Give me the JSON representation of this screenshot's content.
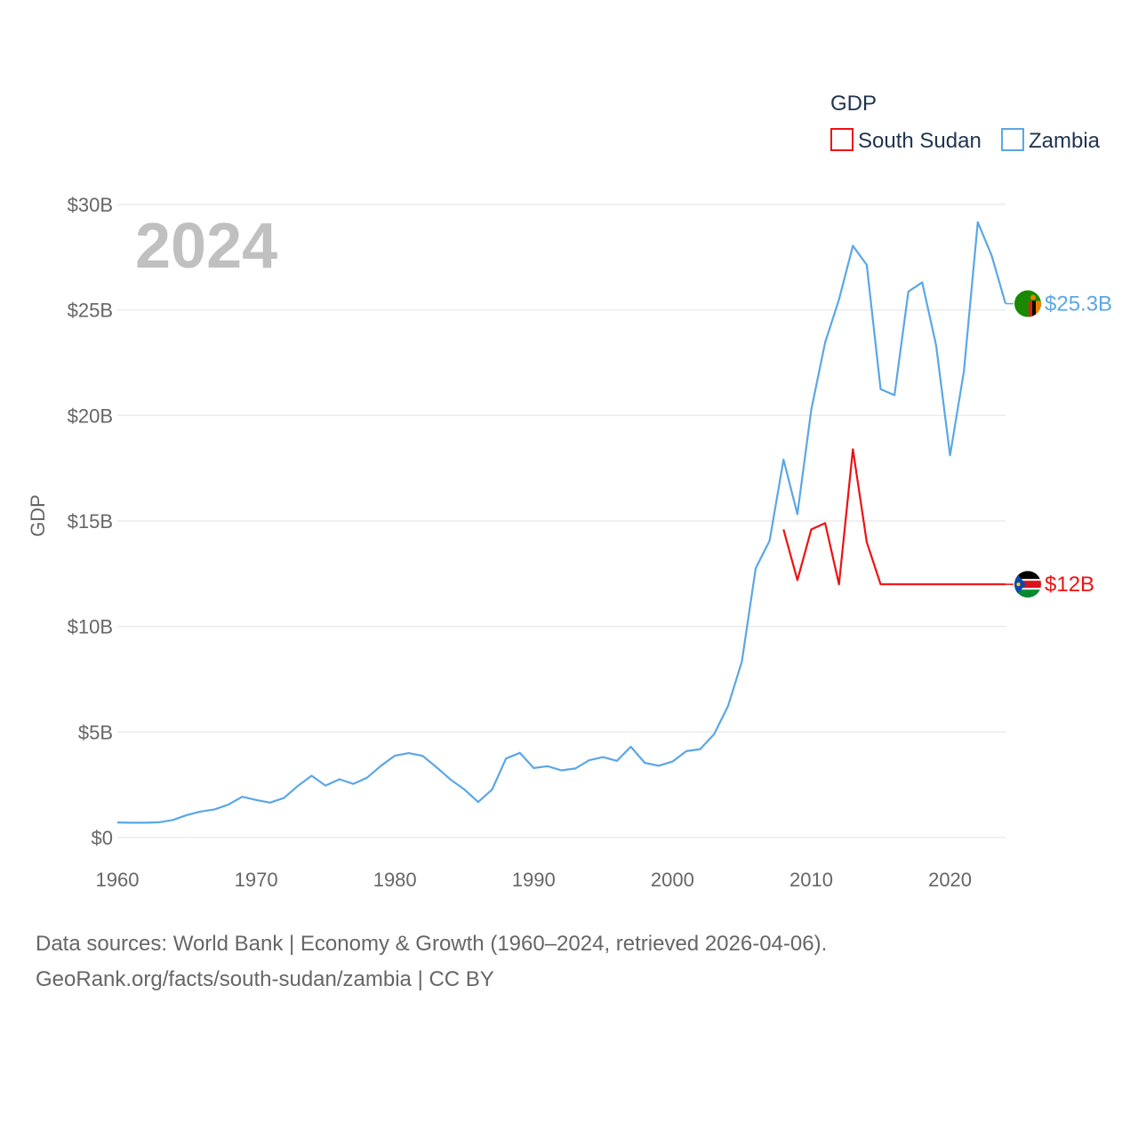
{
  "chart_data": {
    "type": "line",
    "title": "GDP",
    "ylabel": "GDP",
    "xlabel": "",
    "current_year": "2024",
    "xlim": [
      1960,
      2024
    ],
    "ylim": [
      0,
      30
    ],
    "x_ticks": [
      1960,
      1970,
      1980,
      1990,
      2000,
      2010,
      2020
    ],
    "x_tick_labels": [
      "1960",
      "1970",
      "1980",
      "1990",
      "2000",
      "2010",
      "2020"
    ],
    "y_ticks": [
      0,
      5,
      10,
      15,
      20,
      25,
      30
    ],
    "y_tick_labels": [
      "$0",
      "$5B",
      "$10B",
      "$15B",
      "$20B",
      "$25B",
      "$30B"
    ],
    "unit": "billion USD",
    "grid": true,
    "legend_position": "top-right",
    "series": [
      {
        "name": "South Sudan",
        "color": "#ee1111",
        "end_label": "$12B",
        "flag_icon": "south-sudan-flag-icon",
        "x": [
          2008,
          2009,
          2010,
          2011,
          2012,
          2013,
          2014,
          2015,
          2016,
          2017,
          2018,
          2019,
          2020,
          2021,
          2022,
          2023,
          2024
        ],
        "values": [
          14.6,
          12.2,
          14.6,
          14.9,
          12.0,
          18.4,
          14.0,
          12.0,
          12.0,
          12.0,
          12.0,
          12.0,
          12.0,
          12.0,
          12.0,
          12.0,
          12.0
        ]
      },
      {
        "name": "Zambia",
        "color": "#5aa7e6",
        "end_label": "$25.3B",
        "flag_icon": "zambia-flag-icon",
        "x": [
          1960,
          1961,
          1962,
          1963,
          1964,
          1965,
          1966,
          1967,
          1968,
          1969,
          1970,
          1971,
          1972,
          1973,
          1974,
          1975,
          1976,
          1977,
          1978,
          1979,
          1980,
          1981,
          1982,
          1983,
          1984,
          1985,
          1986,
          1987,
          1988,
          1989,
          1990,
          1991,
          1992,
          1993,
          1994,
          1995,
          1996,
          1997,
          1998,
          1999,
          2000,
          2001,
          2002,
          2003,
          2004,
          2005,
          2006,
          2007,
          2008,
          2009,
          2010,
          2011,
          2012,
          2013,
          2014,
          2015,
          2016,
          2017,
          2018,
          2019,
          2020,
          2021,
          2022,
          2023,
          2024
        ],
        "values": [
          0.71,
          0.7,
          0.7,
          0.72,
          0.83,
          1.06,
          1.23,
          1.33,
          1.56,
          1.93,
          1.78,
          1.65,
          1.87,
          2.44,
          2.93,
          2.46,
          2.76,
          2.54,
          2.84,
          3.4,
          3.88,
          4.0,
          3.87,
          3.33,
          2.75,
          2.28,
          1.68,
          2.27,
          3.74,
          4.01,
          3.29,
          3.38,
          3.18,
          3.27,
          3.66,
          3.81,
          3.63,
          4.3,
          3.54,
          3.4,
          3.6,
          4.09,
          4.19,
          4.9,
          6.22,
          8.33,
          12.76,
          14.06,
          17.91,
          15.33,
          20.27,
          23.46,
          25.5,
          28.04,
          27.14,
          21.25,
          20.96,
          25.87,
          26.31,
          23.31,
          18.11,
          22.1,
          29.16,
          27.58,
          25.3
        ]
      }
    ]
  },
  "source": {
    "line1": "Data sources: World Bank | Economy & Growth (1960–2024, retrieved 2026-04-06).",
    "line2": "GeoRank.org/facts/south-sudan/zambia | CC BY"
  }
}
